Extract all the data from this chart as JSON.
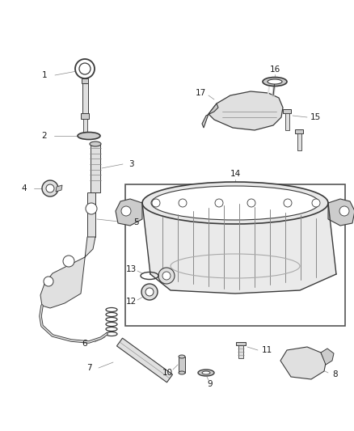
{
  "bg_color": "#ffffff",
  "line_color": "#5a5a5a",
  "dark_line": "#3a3a3a",
  "light_fill": "#e0e0e0",
  "mid_fill": "#cccccc",
  "dark_fill": "#aaaaaa",
  "text_color": "#1a1a1a",
  "leader_color": "#888888",
  "figsize": [
    4.38,
    5.33
  ],
  "dpi": 100,
  "border_color": "#888888"
}
